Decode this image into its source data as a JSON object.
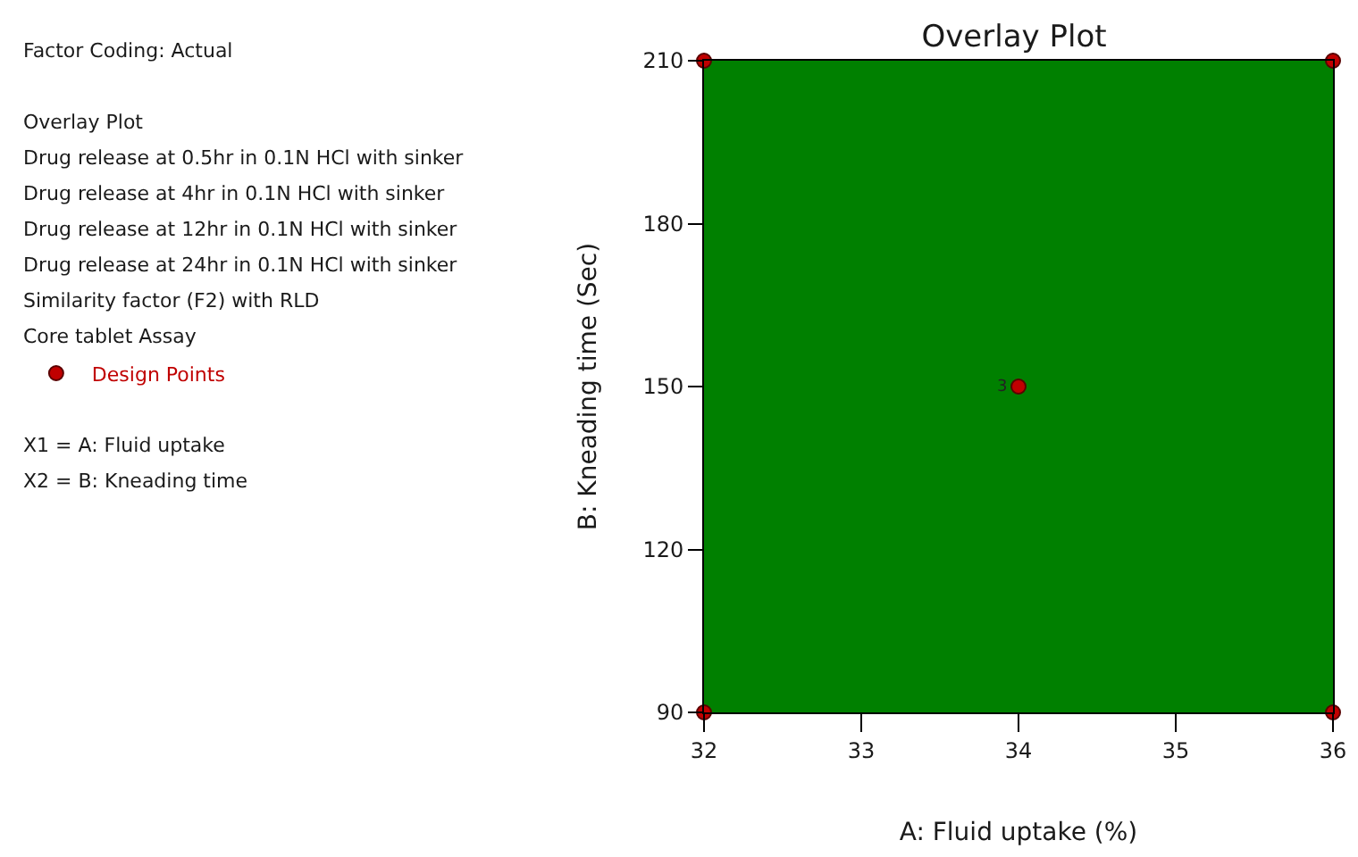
{
  "chart_data": {
    "type": "scatter",
    "title": "Overlay Plot",
    "xlabel": "A: Fluid uptake (%)",
    "ylabel": "B: Kneading time (Sec)",
    "annotations": [
      "Factor Coding: Actual",
      "Overlay Plot\nDrug release at 0.5hr in 0.1N HCl with sinker\nDrug release at 4hr in 0.1N HCl with sinker\nDrug release at 12hr in 0.1N HCl with sinker\nDrug release at 24hr in 0.1N HCl with sinker\nSimilarity factor (F2) with RLD\nCore tablet Assay",
      "X1 = A: Fluid uptake\nX2 = B: Kneading time",
      {
        "text": "3",
        "x": 34,
        "y": 150
      }
    ],
    "x": [
      32,
      32,
      36,
      36,
      34
    ],
    "series": [
      {
        "name": "Design Points",
        "color": "#c00000",
        "values": [
          90,
          210,
          90,
          210,
          150
        ]
      }
    ],
    "bands": [
      {
        "axis": "x",
        "from": 32,
        "to": 36,
        "color": "#008000"
      }
    ],
    "xlim": [
      32,
      36
    ],
    "xticks": [
      32,
      33,
      34,
      35,
      36
    ],
    "ylim": [
      90,
      210
    ],
    "yticks": [
      90,
      120,
      150,
      180,
      210
    ],
    "grid": false,
    "legend": "left",
    "marker": "circle"
  }
}
